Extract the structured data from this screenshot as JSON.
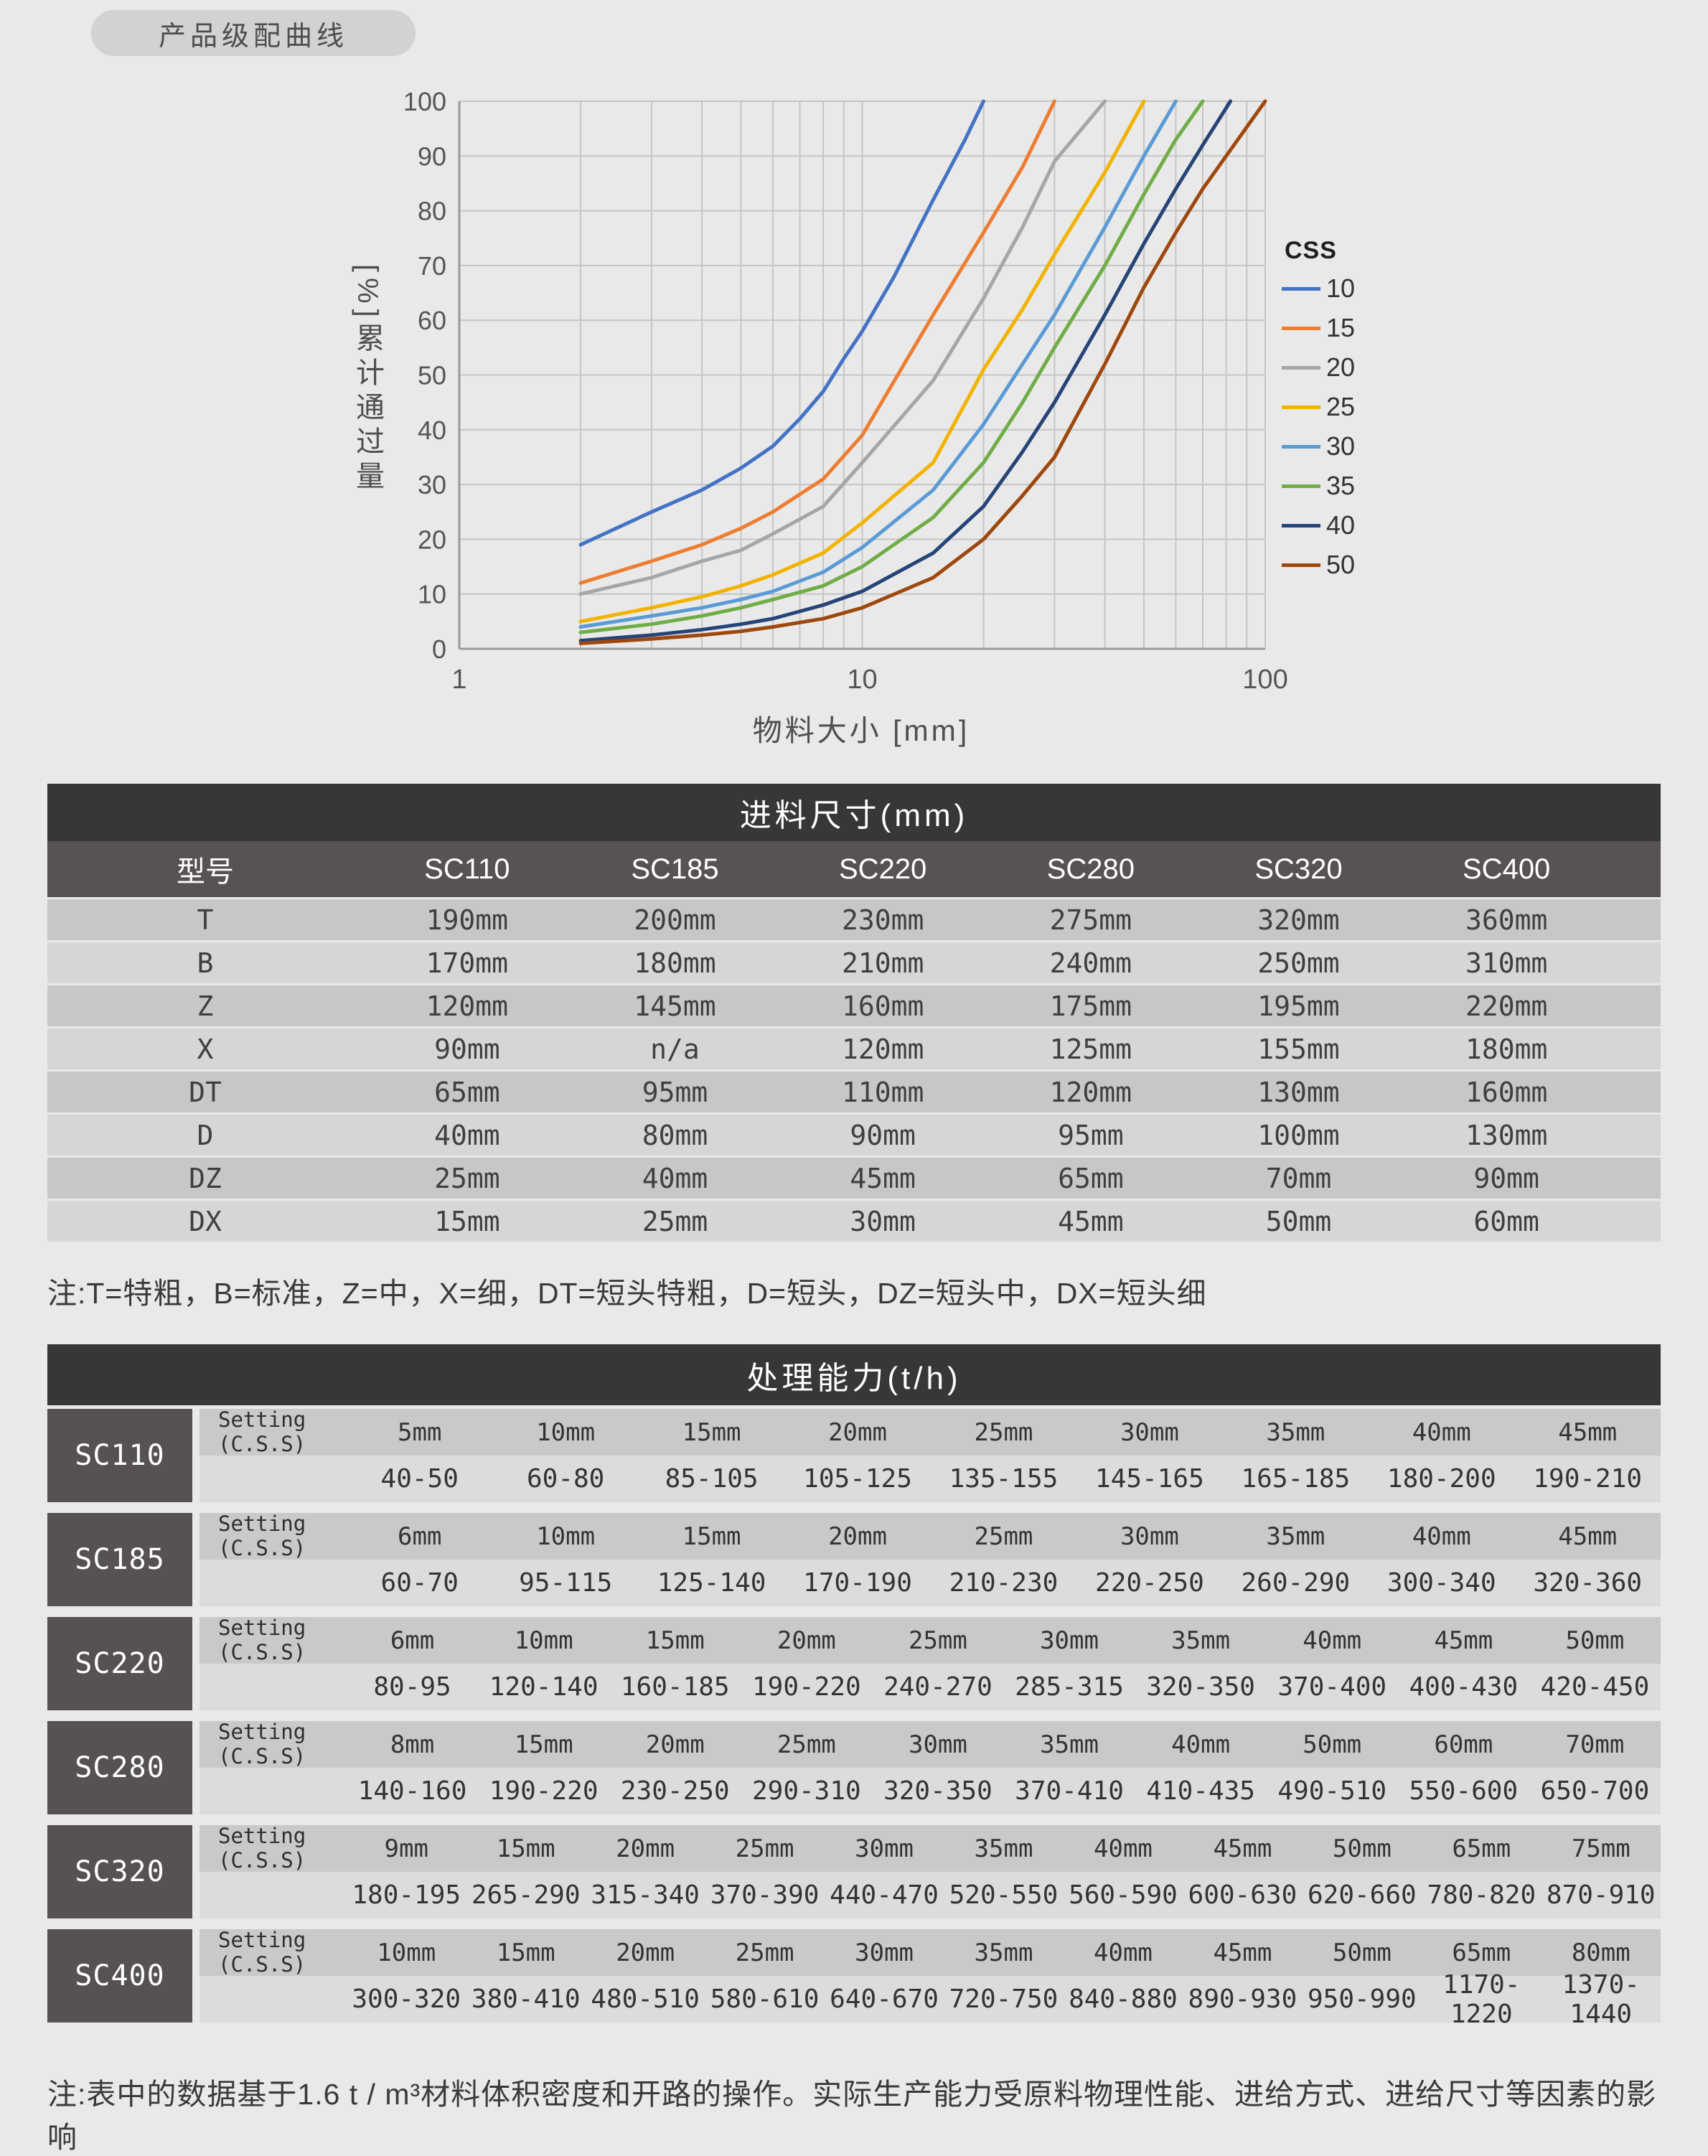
{
  "page": {
    "badge": "产品级配曲线"
  },
  "chart": {
    "y_title_unit": "[%]",
    "y_title": "累计通过量",
    "x_title": "物料大小 [mm]",
    "legend_title": "CSS",
    "x_ticks": [
      "1",
      "10",
      "100"
    ],
    "y_ticks": [
      "0",
      "10",
      "20",
      "30",
      "40",
      "50",
      "60",
      "70",
      "80",
      "90",
      "100"
    ]
  },
  "chart_data": {
    "type": "line",
    "title": "产品级配曲线",
    "xlabel": "物料大小 [mm]",
    "ylabel": "累计通过量 [%]",
    "x_scale": "log",
    "xlim": [
      1,
      100
    ],
    "ylim": [
      0,
      100
    ],
    "grid": true,
    "legend_position": "right",
    "legend_title": "CSS",
    "series": [
      {
        "name": "10",
        "color": "#4472C4",
        "points": [
          [
            2,
            19
          ],
          [
            3,
            25
          ],
          [
            4,
            29
          ],
          [
            5,
            33
          ],
          [
            6,
            37
          ],
          [
            7,
            42
          ],
          [
            8,
            47
          ],
          [
            9,
            53
          ],
          [
            10,
            58
          ],
          [
            12,
            68
          ],
          [
            15,
            82
          ],
          [
            18,
            93
          ],
          [
            20,
            100
          ]
        ]
      },
      {
        "name": "15",
        "color": "#ED7D31",
        "points": [
          [
            2,
            12
          ],
          [
            3,
            16
          ],
          [
            4,
            19
          ],
          [
            5,
            22
          ],
          [
            6,
            25
          ],
          [
            8,
            31
          ],
          [
            10,
            39
          ],
          [
            15,
            61
          ],
          [
            20,
            76
          ],
          [
            25,
            88
          ],
          [
            30,
            100
          ]
        ]
      },
      {
        "name": "20",
        "color": "#A6A6A6",
        "points": [
          [
            2,
            10
          ],
          [
            3,
            13
          ],
          [
            4,
            16
          ],
          [
            5,
            18
          ],
          [
            6,
            21
          ],
          [
            8,
            26
          ],
          [
            10,
            34
          ],
          [
            15,
            49
          ],
          [
            20,
            64
          ],
          [
            25,
            77
          ],
          [
            30,
            89
          ],
          [
            40,
            100
          ]
        ]
      },
      {
        "name": "25",
        "color": "#F2B300",
        "points": [
          [
            2,
            5
          ],
          [
            3,
            7.5
          ],
          [
            4,
            9.5
          ],
          [
            5,
            11.5
          ],
          [
            6,
            13.5
          ],
          [
            8,
            17.5
          ],
          [
            10,
            23
          ],
          [
            15,
            34
          ],
          [
            20,
            51
          ],
          [
            25,
            62
          ],
          [
            30,
            72
          ],
          [
            40,
            87
          ],
          [
            50,
            100
          ]
        ]
      },
      {
        "name": "30",
        "color": "#5B9BD5",
        "points": [
          [
            2,
            4
          ],
          [
            3,
            6
          ],
          [
            4,
            7.5
          ],
          [
            5,
            9
          ],
          [
            6,
            10.5
          ],
          [
            8,
            14
          ],
          [
            10,
            18.5
          ],
          [
            15,
            29
          ],
          [
            20,
            41
          ],
          [
            25,
            52
          ],
          [
            30,
            61
          ],
          [
            40,
            77
          ],
          [
            50,
            90
          ],
          [
            60,
            100
          ]
        ]
      },
      {
        "name": "35",
        "color": "#70AD47",
        "points": [
          [
            2,
            3
          ],
          [
            3,
            4.5
          ],
          [
            4,
            6
          ],
          [
            5,
            7.5
          ],
          [
            6,
            9
          ],
          [
            8,
            11.5
          ],
          [
            10,
            15
          ],
          [
            15,
            24
          ],
          [
            20,
            34
          ],
          [
            25,
            45
          ],
          [
            30,
            55
          ],
          [
            40,
            70
          ],
          [
            50,
            83
          ],
          [
            60,
            93
          ],
          [
            70,
            100
          ]
        ]
      },
      {
        "name": "40",
        "color": "#264478",
        "points": [
          [
            2,
            1.5
          ],
          [
            3,
            2.5
          ],
          [
            4,
            3.5
          ],
          [
            5,
            4.5
          ],
          [
            6,
            5.5
          ],
          [
            8,
            8
          ],
          [
            10,
            10.5
          ],
          [
            15,
            17.5
          ],
          [
            20,
            26
          ],
          [
            25,
            36
          ],
          [
            30,
            45
          ],
          [
            40,
            61
          ],
          [
            50,
            74
          ],
          [
            60,
            84
          ],
          [
            70,
            92
          ],
          [
            82,
            100
          ]
        ]
      },
      {
        "name": "50",
        "color": "#9E480E",
        "points": [
          [
            2,
            1
          ],
          [
            3,
            1.8
          ],
          [
            4,
            2.5
          ],
          [
            5,
            3.2
          ],
          [
            6,
            4
          ],
          [
            8,
            5.5
          ],
          [
            10,
            7.5
          ],
          [
            15,
            13
          ],
          [
            20,
            20
          ],
          [
            25,
            28
          ],
          [
            30,
            35
          ],
          [
            40,
            52
          ],
          [
            50,
            66
          ],
          [
            60,
            76
          ],
          [
            70,
            84
          ],
          [
            80,
            90
          ],
          [
            100,
            100
          ]
        ]
      }
    ]
  },
  "feed_table": {
    "title": "进料尺寸(mm)",
    "headers": [
      "型号",
      "SC110",
      "SC185",
      "SC220",
      "SC280",
      "SC320",
      "SC400"
    ],
    "rows": [
      {
        "label": "T",
        "values": [
          "190mm",
          "200mm",
          "230mm",
          "275mm",
          "320mm",
          "360mm"
        ]
      },
      {
        "label": "B",
        "values": [
          "170mm",
          "180mm",
          "210mm",
          "240mm",
          "250mm",
          "310mm"
        ]
      },
      {
        "label": "Z",
        "values": [
          "120mm",
          "145mm",
          "160mm",
          "175mm",
          "195mm",
          "220mm"
        ]
      },
      {
        "label": "X",
        "values": [
          "90mm",
          "n/a",
          "120mm",
          "125mm",
          "155mm",
          "180mm"
        ]
      },
      {
        "label": "DT",
        "values": [
          "65mm",
          "95mm",
          "110mm",
          "120mm",
          "130mm",
          "160mm"
        ]
      },
      {
        "label": "D",
        "values": [
          "40mm",
          "80mm",
          "90mm",
          "95mm",
          "100mm",
          "130mm"
        ]
      },
      {
        "label": "DZ",
        "values": [
          "25mm",
          "40mm",
          "45mm",
          "65mm",
          "70mm",
          "90mm"
        ]
      },
      {
        "label": "DX",
        "values": [
          "15mm",
          "25mm",
          "30mm",
          "45mm",
          "50mm",
          "60mm"
        ]
      }
    ],
    "note": "注:T=特粗，B=标准，Z=中，X=细，DT=短头特粗，D=短头，DZ=短头中，DX=短头细"
  },
  "capacity_table": {
    "title": "处理能力(t/h)",
    "setting_label": "Setting",
    "setting_sublabel": "(C.S.S)",
    "rows": [
      {
        "model": "SC110",
        "settings": [
          "5mm",
          "10mm",
          "15mm",
          "20mm",
          "25mm",
          "30mm",
          "35mm",
          "40mm",
          "45mm"
        ],
        "values": [
          "40-50",
          "60-80",
          "85-105",
          "105-125",
          "135-155",
          "145-165",
          "165-185",
          "180-200",
          "190-210"
        ]
      },
      {
        "model": "SC185",
        "settings": [
          "6mm",
          "10mm",
          "15mm",
          "20mm",
          "25mm",
          "30mm",
          "35mm",
          "40mm",
          "45mm"
        ],
        "values": [
          "60-70",
          "95-115",
          "125-140",
          "170-190",
          "210-230",
          "220-250",
          "260-290",
          "300-340",
          "320-360"
        ]
      },
      {
        "model": "SC220",
        "settings": [
          "6mm",
          "10mm",
          "15mm",
          "20mm",
          "25mm",
          "30mm",
          "35mm",
          "40mm",
          "45mm",
          "50mm"
        ],
        "values": [
          "80-95",
          "120-140",
          "160-185",
          "190-220",
          "240-270",
          "285-315",
          "320-350",
          "370-400",
          "400-430",
          "420-450"
        ]
      },
      {
        "model": "SC280",
        "settings": [
          "8mm",
          "15mm",
          "20mm",
          "25mm",
          "30mm",
          "35mm",
          "40mm",
          "50mm",
          "60mm",
          "70mm"
        ],
        "values": [
          "140-160",
          "190-220",
          "230-250",
          "290-310",
          "320-350",
          "370-410",
          "410-435",
          "490-510",
          "550-600",
          "650-700"
        ]
      },
      {
        "model": "SC320",
        "settings": [
          "9mm",
          "15mm",
          "20mm",
          "25mm",
          "30mm",
          "35mm",
          "40mm",
          "45mm",
          "50mm",
          "65mm",
          "75mm"
        ],
        "values": [
          "180-195",
          "265-290",
          "315-340",
          "370-390",
          "440-470",
          "520-550",
          "560-590",
          "600-630",
          "620-660",
          "780-820",
          "870-910"
        ]
      },
      {
        "model": "SC400",
        "settings": [
          "10mm",
          "15mm",
          "20mm",
          "25mm",
          "30mm",
          "35mm",
          "40mm",
          "45mm",
          "50mm",
          "65mm",
          "80mm"
        ],
        "values": [
          "300-320",
          "380-410",
          "480-510",
          "580-610",
          "640-670",
          "720-750",
          "840-880",
          "890-930",
          "950-990",
          "1170-1220",
          "1370-1440"
        ]
      }
    ],
    "note": "注:表中的数据基于1.6 t / m³材料体积密度和开路的操作。实际生产能力受原料物理性能、进给方式、进给尺寸等因素的影响"
  }
}
